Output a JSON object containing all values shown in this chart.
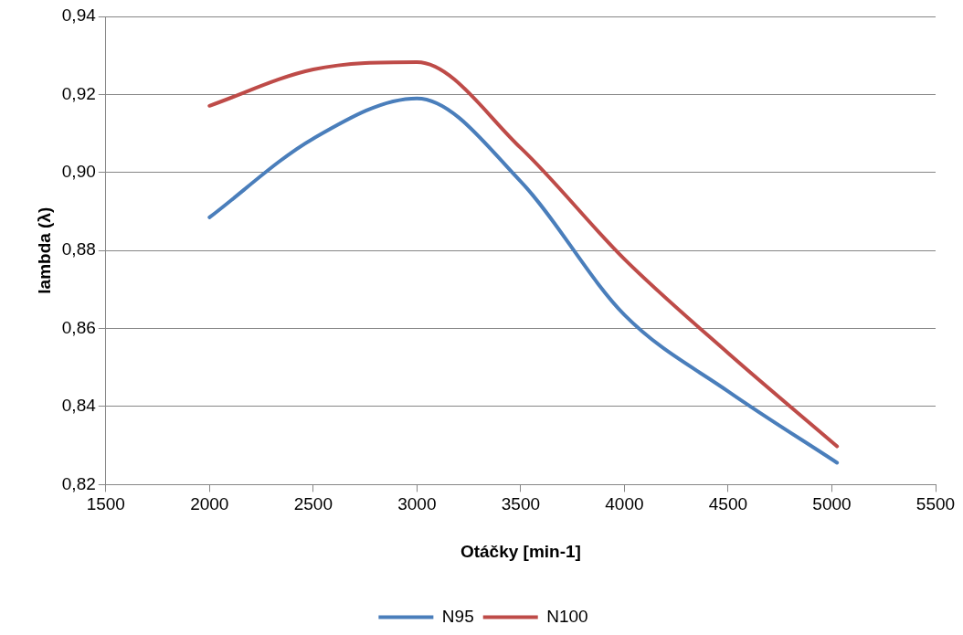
{
  "chart_data": {
    "type": "line",
    "xlabel": "Otáčky [min-1]",
    "ylabel": "lambda (λ)",
    "x": [
      2000,
      2500,
      3000,
      3500,
      4000,
      4500,
      5025
    ],
    "series": [
      {
        "name": "N95",
        "color": "#4a7ebb",
        "values": [
          0.8885,
          0.9087,
          0.919,
          0.8977,
          0.8635,
          0.8439,
          0.8256
        ]
      },
      {
        "name": "N100",
        "color": "#be4b48",
        "values": [
          0.9171,
          0.9264,
          0.9283,
          0.9063,
          0.8778,
          0.8537,
          0.8298
        ]
      }
    ],
    "xlim": [
      1500,
      5500
    ],
    "xticks": [
      1500,
      2000,
      2500,
      3000,
      3500,
      4000,
      4500,
      5000,
      5500
    ],
    "ylim": [
      0.82,
      0.94
    ],
    "yticks": [
      {
        "value": 0.82,
        "label": "0,82"
      },
      {
        "value": 0.84,
        "label": "0,84"
      },
      {
        "value": 0.86,
        "label": "0,86"
      },
      {
        "value": 0.88,
        "label": "0,88"
      },
      {
        "value": 0.9,
        "label": "0,90"
      },
      {
        "value": 0.92,
        "label": "0,92"
      },
      {
        "value": 0.94,
        "label": "0,94"
      }
    ],
    "grid": "y",
    "legend": "bottom",
    "marker": "none",
    "line_style": "solid"
  }
}
